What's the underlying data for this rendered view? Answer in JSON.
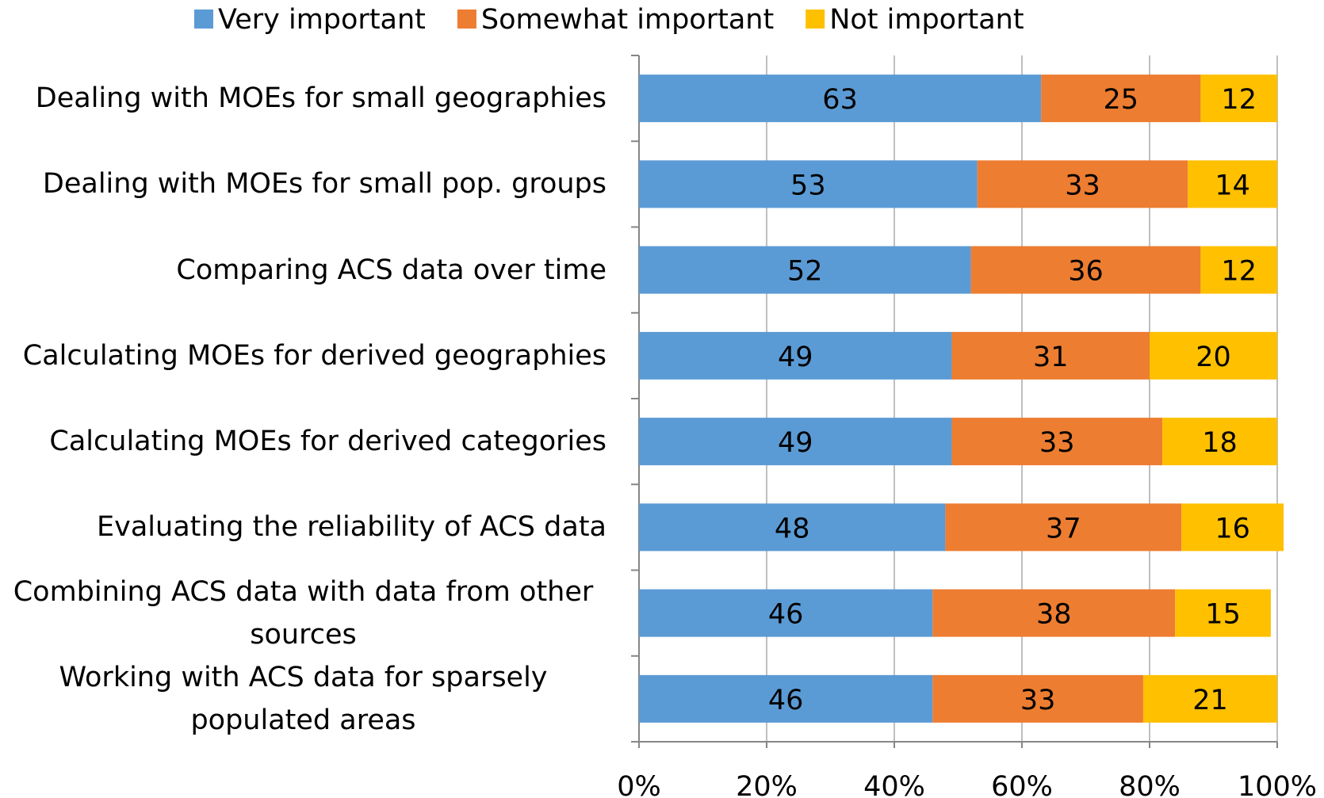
{
  "chart_data": {
    "type": "stacked_bar_horizontal",
    "categories": [
      "Dealing with MOEs for small geographies",
      "Dealing with MOEs for small pop. groups",
      "Comparing ACS data over time",
      "Calculating MOEs for derived geographies",
      "Calculating MOEs for derived categories",
      "Evaluating the reliability of ACS data",
      "Combining ACS data with data from other sources",
      "Working with ACS data for sparsely populated areas"
    ],
    "series": [
      {
        "name": "Very important",
        "color": "#5b9bd5",
        "values": [
          63,
          53,
          52,
          49,
          49,
          48,
          46,
          46
        ]
      },
      {
        "name": "Somewhat important",
        "color": "#ed7d31",
        "values": [
          25,
          33,
          36,
          31,
          33,
          37,
          38,
          33
        ]
      },
      {
        "name": "Not important",
        "color": "#ffc000",
        "values": [
          12,
          14,
          12,
          20,
          18,
          16,
          15,
          21
        ]
      }
    ],
    "xlim": [
      0,
      100
    ],
    "xticks": [
      {
        "value": 0,
        "label": "0%"
      },
      {
        "value": 20,
        "label": "20%"
      },
      {
        "value": 40,
        "label": "40%"
      },
      {
        "value": 60,
        "label": "60%"
      },
      {
        "value": 80,
        "label": "80%"
      },
      {
        "value": 100,
        "label": "100%"
      }
    ],
    "grid": true,
    "legend": "top"
  }
}
